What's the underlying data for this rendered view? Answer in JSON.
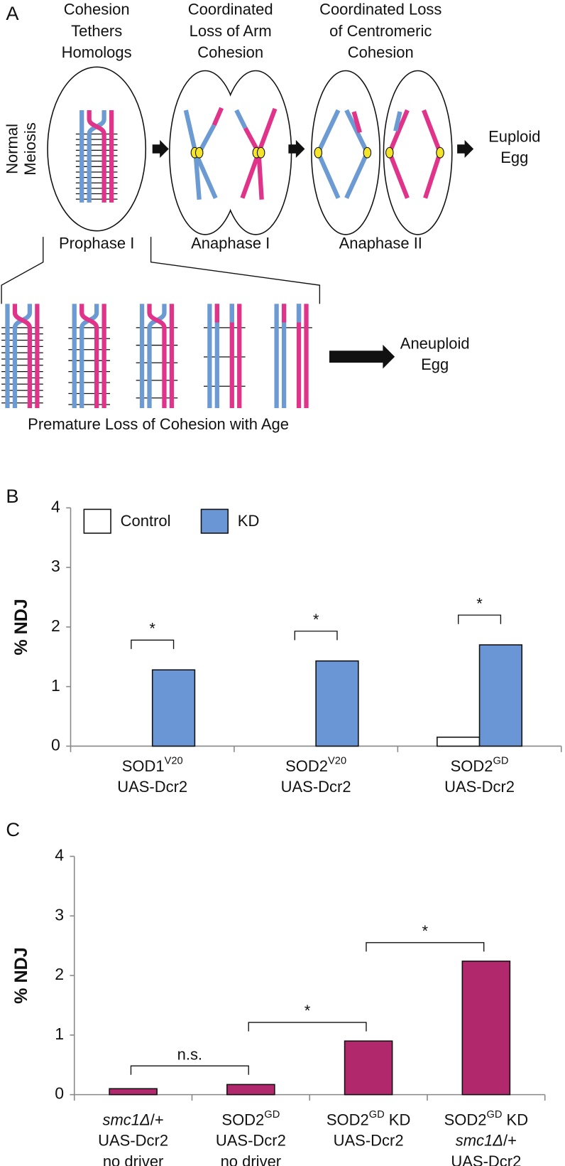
{
  "panel_a": {
    "label": "A",
    "headers": [
      [
        "Cohesion",
        "Tethers",
        "Homologs"
      ],
      [
        "Coordinated",
        "Loss of Arm",
        "Cohesion"
      ],
      [
        "Coordinated Loss",
        "of Centromeric",
        "Cohesion"
      ]
    ],
    "row_label": [
      "Normal",
      "Meiosis"
    ],
    "outcome": [
      "Euploid",
      "Egg"
    ],
    "stages": [
      "Prophase I",
      "Anaphase I",
      "Anaphase II"
    ],
    "aged_outcome": [
      "Aneuploid",
      "Egg"
    ],
    "caption": "Premature Loss of Cohesion with Age"
  },
  "chart_data": [
    {
      "type": "bar",
      "panel_label": "B",
      "y_label": "% NDJ",
      "categories": [
        [
          [
            {
              "text": "SOD1"
            },
            {
              "text": "V20",
              "style": "superscript"
            }
          ],
          [
            {
              "text": "UAS-Dcr2"
            }
          ]
        ],
        [
          [
            {
              "text": "SOD2"
            },
            {
              "text": "V20",
              "style": "superscript"
            }
          ],
          [
            {
              "text": "UAS-Dcr2"
            }
          ]
        ],
        [
          [
            {
              "text": "SOD2"
            },
            {
              "text": "GD",
              "style": "superscript"
            }
          ],
          [
            {
              "text": "UAS-Dcr2"
            }
          ]
        ]
      ],
      "series": [
        {
          "name": "Control",
          "color": "#ffffff",
          "values": [
            0,
            0,
            0.15
          ]
        },
        {
          "name": "KD",
          "color": "#6a96d6",
          "values": [
            1.28,
            1.43,
            1.7
          ]
        }
      ],
      "ylim": [
        0,
        4
      ],
      "yticks": [
        0,
        1,
        2,
        3,
        4
      ],
      "legend": "top-left",
      "significance_labels": [
        "*",
        "*",
        "*"
      ]
    },
    {
      "type": "bar",
      "panel_label": "C",
      "y_label": "% NDJ",
      "categories": [
        [
          [
            {
              "text": "smc1Δ",
              "style": "italic"
            },
            {
              "text": "/+"
            }
          ],
          [
            {
              "text": "UAS-Dcr2"
            }
          ],
          [
            {
              "text": "no driver"
            }
          ]
        ],
        [
          [
            {
              "text": "SOD2"
            },
            {
              "text": "GD",
              "style": "superscript"
            }
          ],
          [
            {
              "text": "UAS-Dcr2"
            }
          ],
          [
            {
              "text": "no driver"
            }
          ]
        ],
        [
          [
            {
              "text": "SOD2"
            },
            {
              "text": "GD",
              "style": "superscript"
            },
            {
              "text": " KD"
            }
          ],
          [
            {
              "text": "UAS-Dcr2"
            }
          ]
        ],
        [
          [
            {
              "text": "SOD2"
            },
            {
              "text": "GD",
              "style": "superscript"
            },
            {
              "text": " KD"
            }
          ],
          [
            {
              "text": "smc1Δ",
              "style": "italic"
            },
            {
              "text": "/+"
            }
          ],
          [
            {
              "text": "UAS-Dcr2"
            }
          ]
        ]
      ],
      "values": [
        0.1,
        0.17,
        0.9,
        2.24
      ],
      "color": "#b2286c",
      "ylim": [
        0,
        4
      ],
      "yticks": [
        0,
        1,
        2,
        3,
        4
      ],
      "comparison_labels": [
        "n.s.",
        "*",
        "*"
      ]
    }
  ]
}
